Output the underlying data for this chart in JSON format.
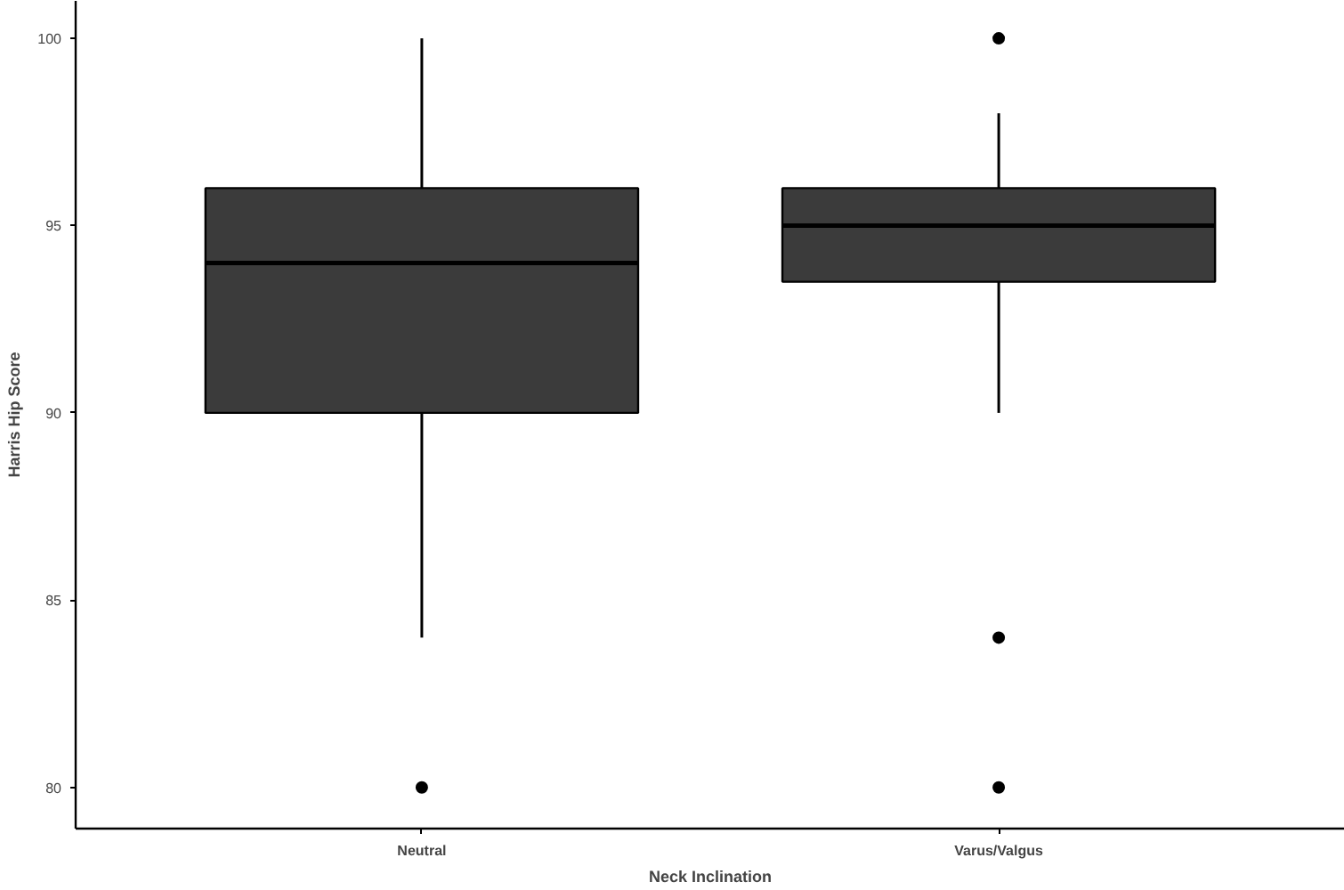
{
  "chart_data": {
    "type": "box",
    "xlabel": "Neck Inclination",
    "ylabel": "Harris Hip Score",
    "categories": [
      "Neutral",
      "Varus/Valgus"
    ],
    "boxes": [
      {
        "low": 84,
        "q1": 90,
        "median": 94,
        "q3": 96,
        "high": 100,
        "outliers": [
          80
        ]
      },
      {
        "low": 90,
        "q1": 93.5,
        "median": 95,
        "q3": 96,
        "high": 98,
        "outliers": [
          100,
          84,
          80
        ]
      }
    ],
    "color": "#3b3b3b",
    "ylim": [
      78.9,
      101.0
    ],
    "yticks": [
      80,
      85,
      90,
      95,
      100
    ],
    "grid": false
  }
}
